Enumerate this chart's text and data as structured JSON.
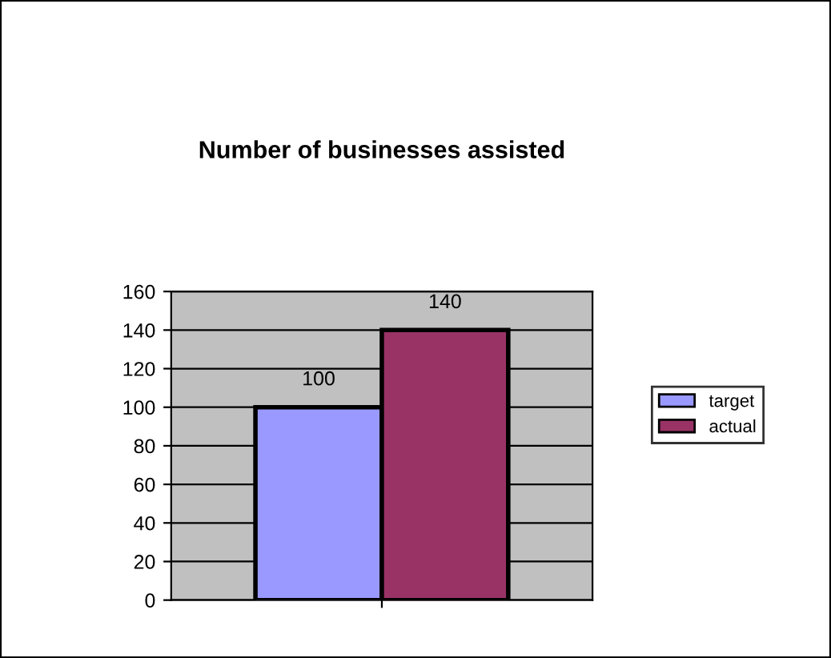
{
  "chart_data": {
    "type": "bar",
    "title": "Number of businesses assisted",
    "categories": [
      null
    ],
    "series": [
      {
        "name": "target",
        "color": "#9999ff",
        "values": [
          100
        ]
      },
      {
        "name": "actual",
        "color": "#993366",
        "values": [
          140
        ]
      }
    ],
    "ylim": [
      0,
      160
    ],
    "yticks": [
      0,
      20,
      40,
      60,
      80,
      100,
      120,
      140,
      160
    ],
    "grid": "y",
    "legend": "right",
    "data_labels": true
  }
}
